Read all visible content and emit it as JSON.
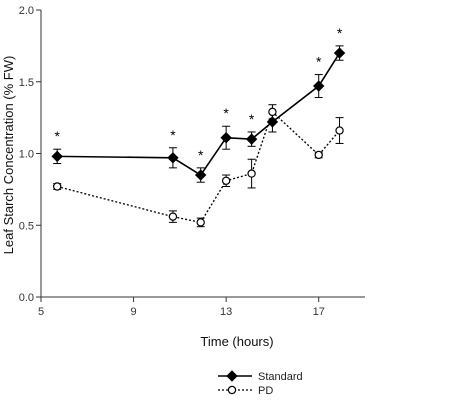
{
  "chart_data": {
    "type": "line",
    "title": "",
    "xlabel": "Time (hours)",
    "ylabel": "Leaf Starch Concentration (% FW)",
    "xlim": [
      5,
      19
    ],
    "ylim": [
      0.0,
      2.0
    ],
    "xticks": [
      5,
      9,
      13,
      17
    ],
    "yticks": [
      "0.0",
      "0.5",
      "1.0",
      "1.5",
      "2.0"
    ],
    "grid": false,
    "legend_position": "bottom-left",
    "series": [
      {
        "name": "Standard",
        "color": "#000000",
        "line": "solid",
        "marker": "filled-diamond",
        "points": [
          {
            "x": 5.7,
            "y": 0.98,
            "err": 0.05,
            "sig": "*"
          },
          {
            "x": 10.7,
            "y": 0.97,
            "err": 0.07,
            "sig": "*"
          },
          {
            "x": 11.9,
            "y": 0.85,
            "err": 0.05,
            "sig": "*"
          },
          {
            "x": 13.0,
            "y": 1.11,
            "err": 0.08,
            "sig": "*"
          },
          {
            "x": 14.1,
            "y": 1.1,
            "err": 0.05,
            "sig": "*"
          },
          {
            "x": 15.0,
            "y": 1.22,
            "err": 0.07,
            "sig": ""
          },
          {
            "x": 17.0,
            "y": 1.47,
            "err": 0.08,
            "sig": "*"
          },
          {
            "x": 17.9,
            "y": 1.7,
            "err": 0.05,
            "sig": "*"
          }
        ]
      },
      {
        "name": "PD",
        "color": "#000000",
        "line": "dotted",
        "marker": "open-circle",
        "points": [
          {
            "x": 5.7,
            "y": 0.77,
            "err": 0.02
          },
          {
            "x": 10.7,
            "y": 0.56,
            "err": 0.04
          },
          {
            "x": 11.9,
            "y": 0.52,
            "err": 0.03
          },
          {
            "x": 13.0,
            "y": 0.81,
            "err": 0.04
          },
          {
            "x": 14.1,
            "y": 0.86,
            "err": 0.1
          },
          {
            "x": 15.0,
            "y": 1.29,
            "err": 0.05
          },
          {
            "x": 17.0,
            "y": 0.99,
            "err": 0.02
          },
          {
            "x": 17.9,
            "y": 1.16,
            "err": 0.09
          }
        ]
      }
    ]
  }
}
